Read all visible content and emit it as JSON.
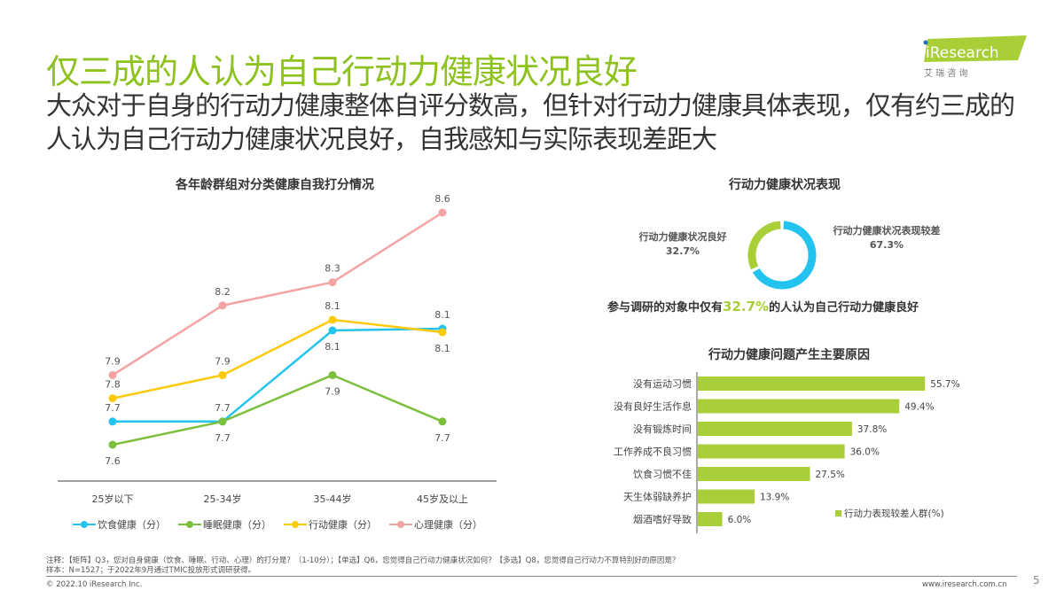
{
  "header": {
    "title": "仅三成的人认为自己行动力健康状况良好",
    "subtitle": "大众对于自身的行动力健康整体自评分数高，但针对行动力健康具体表现，仅有约三成的人认为自己行动力健康状况良好，自我感知与实际表现差距大",
    "logo_text": "iResearch",
    "logo_cn": "艾 瑞 咨 询"
  },
  "colors": {
    "brand_green": "#8dc21f",
    "bar_green": "#a8cf38",
    "blue": "#22c3ee",
    "green": "#7cbf3d",
    "yellow": "#fdca0a",
    "pink": "#f4a3a3"
  },
  "chart_data": [
    {
      "type": "line",
      "title": "各年龄群组对分类健康自我打分情况",
      "categories": [
        "25岁以下",
        "25-34岁",
        "35-44岁",
        "45岁及以上"
      ],
      "legend": "bottom",
      "grid": false,
      "series": [
        {
          "name": "饮食健康（分）",
          "color": "#22c3ee",
          "values": [
            7.7,
            7.7,
            8.1,
            8.1
          ],
          "labels": [
            "7.7",
            "7.7",
            "8.1",
            "8.1"
          ]
        },
        {
          "name": "睡眠健康（分）",
          "color": "#7cbf3d",
          "values": [
            7.6,
            7.7,
            7.9,
            7.7
          ],
          "labels": [
            "7.6",
            "7.7",
            "7.9",
            "7.7"
          ]
        },
        {
          "name": "行动健康（分）",
          "color": "#fdca0a",
          "values": [
            7.8,
            7.9,
            8.1,
            8.1
          ],
          "labels": [
            "7.8",
            "7.9",
            "8.1",
            "8.1"
          ]
        },
        {
          "name": "心理健康（分）",
          "color": "#f4a3a3",
          "values": [
            7.9,
            8.2,
            8.3,
            8.6
          ],
          "labels": [
            "7.9",
            "8.2",
            "8.3",
            "8.6"
          ]
        }
      ]
    },
    {
      "type": "pie",
      "title": "行动力健康状况表现",
      "slices": [
        {
          "label": "行动力健康状况良好",
          "value": 32.7,
          "value_label": "32.7%",
          "color": "#a8cf38"
        },
        {
          "label": "行动力健康状况表现较差",
          "value": 67.3,
          "value_label": "67.3%",
          "color": "#22c3ee"
        }
      ],
      "annotation_prefix": "参与调研的对象中仅有",
      "annotation_highlight": "32.7%",
      "annotation_suffix": "的人认为自己行动力健康良好"
    },
    {
      "type": "bar",
      "orientation": "horizontal",
      "title": "行动力健康问题产生主要原因",
      "legend_label": "行动力表现较差人群(%)",
      "legend": "bottom-right",
      "categories": [
        "没有运动习惯",
        "没有良好生活作息",
        "没有锻炼时间",
        "工作养成不良习惯",
        "饮食习惯不佳",
        "天生体弱缺养护",
        "烟酒嗜好导致"
      ],
      "values": [
        55.7,
        49.4,
        37.8,
        36.0,
        27.5,
        13.9,
        6.0
      ],
      "value_labels": [
        "55.7%",
        "49.4%",
        "37.8%",
        "36.0%",
        "27.5%",
        "13.9%",
        "6.0%"
      ]
    }
  ],
  "footer": {
    "note": "注释：【矩阵】Q3，您对自身健康（饮食、睡眠、行动、心理）的打分是？（1-10分）；【单选】Q6，您觉得自己行动力健康状况如何？【多选】Q8，您觉得自己行动力不算特别好的原因是？",
    "sample": "样本：N=1527；于2022年9月通过TMIC投放形式调研获得。",
    "copyright": "© 2022.10 iResearch Inc.",
    "website": "www.iresearch.com.cn",
    "page_number": "5"
  }
}
